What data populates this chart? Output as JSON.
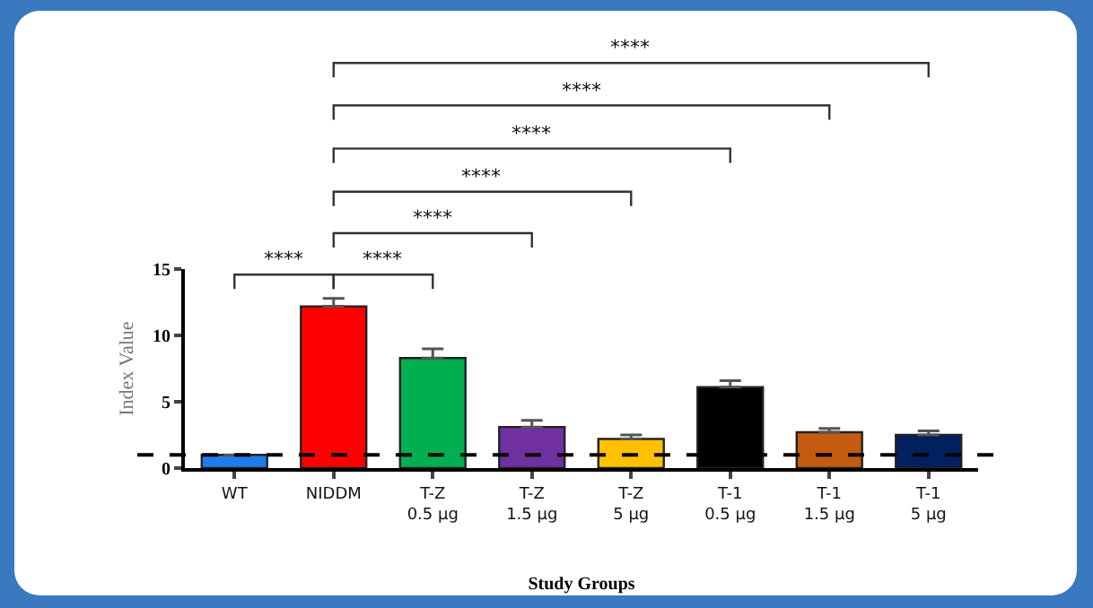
{
  "chart_data": {
    "type": "bar",
    "xlabel": "Study Groups",
    "ylabel": "Index Value",
    "categories": [
      "WT",
      "NIDDM",
      "T-Z\n0.5 µg",
      "T-Z\n1.5 µg",
      "T-Z\n5 µg",
      "T-1\n0.5 µg",
      "T-1\n1.5 µg",
      "T-1\n5 µg"
    ],
    "values": [
      1.0,
      12.2,
      8.3,
      3.1,
      2.2,
      6.1,
      2.7,
      2.5
    ],
    "colors": [
      "#1f7cec",
      "#ff0000",
      "#00b050",
      "#7030a0",
      "#ffc000",
      "#000000",
      "#c55a11",
      "#002060"
    ],
    "errors": [
      null,
      [
        12.2,
        12.8
      ],
      [
        8.3,
        9.0
      ],
      [
        3.1,
        3.6
      ],
      [
        2.2,
        2.5
      ],
      [
        6.1,
        6.6
      ],
      [
        2.7,
        3.0
      ],
      [
        2.5,
        2.8
      ]
    ],
    "ylim": [
      0,
      15
    ],
    "yticks": [
      0,
      5,
      10,
      15
    ],
    "grid": false,
    "ref_lines": [
      {
        "axis": "y",
        "value": 1,
        "line_style": "dashed",
        "color": "#000000"
      }
    ],
    "annotations": [
      "****",
      "****",
      "****",
      "****",
      "****",
      "****",
      "****"
    ]
  }
}
